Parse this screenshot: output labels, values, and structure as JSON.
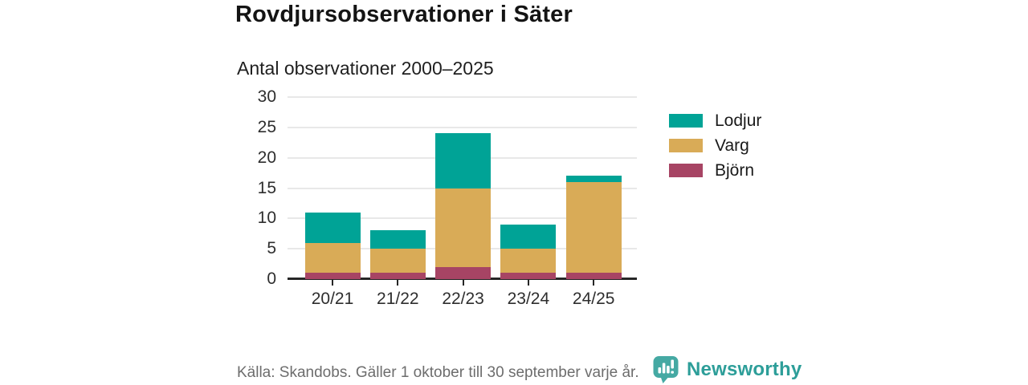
{
  "header": {
    "title": "Rovdjursobservationer i Säter",
    "subtitle": "Antal observationer 2000–2025"
  },
  "chart_data": {
    "type": "bar",
    "stacked": true,
    "title": "Rovdjursobservationer i Säter",
    "subtitle": "Antal observationer 2000–2025",
    "categories": [
      "20/21",
      "21/22",
      "22/23",
      "23/24",
      "24/25"
    ],
    "series": [
      {
        "name": "Björn",
        "color": "#a74464",
        "values": [
          1,
          1,
          2,
          1,
          1
        ]
      },
      {
        "name": "Varg",
        "color": "#d9ab57",
        "values": [
          5,
          4,
          13,
          4,
          15
        ]
      },
      {
        "name": "Lodjur",
        "color": "#00a396",
        "values": [
          5,
          3,
          9,
          4,
          1
        ]
      }
    ],
    "totals": [
      11,
      8,
      24,
      9,
      17
    ],
    "xlabel": "",
    "ylabel": "",
    "ylim": [
      0,
      30
    ],
    "yticks": [
      0,
      5,
      10,
      15,
      20,
      25,
      30
    ],
    "grid": "horizontal",
    "legend_position": "right"
  },
  "legend": {
    "items": [
      {
        "label": "Lodjur",
        "color": "#00a396"
      },
      {
        "label": "Varg",
        "color": "#d9ab57"
      },
      {
        "label": "Björn",
        "color": "#a74464"
      }
    ]
  },
  "footer": {
    "source": "Källa: Skandobs. Gäller 1 oktober till 30 september varje år.",
    "brand": "Newsworthy",
    "brand_color": "#2d9e99",
    "logo_color": "#45a9a3"
  }
}
